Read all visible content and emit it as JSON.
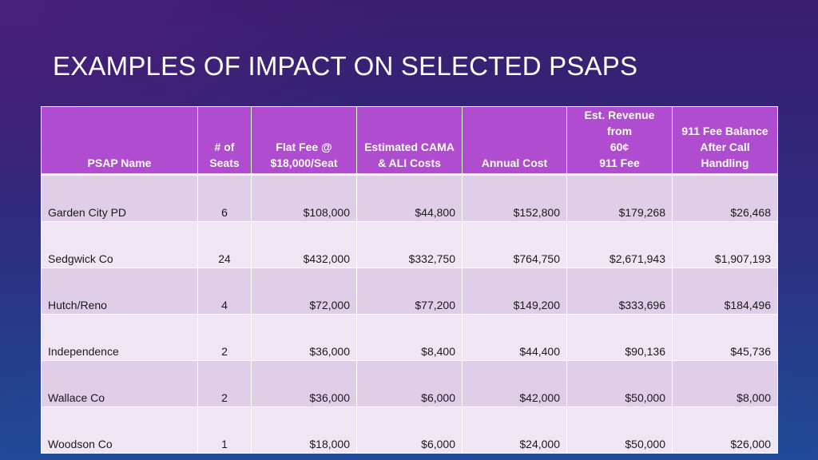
{
  "slide": {
    "title": "EXAMPLES OF IMPACT ON SELECTED PSAPS"
  },
  "table": {
    "headers": [
      {
        "lines": [
          "PSAP Name"
        ]
      },
      {
        "lines": [
          "# of",
          "Seats"
        ]
      },
      {
        "lines": [
          "Flat Fee @",
          "$18,000/Seat"
        ]
      },
      {
        "lines": [
          "Estimated CAMA",
          "& ALI Costs"
        ]
      },
      {
        "lines": [
          "Annual Cost"
        ]
      },
      {
        "lines": [
          "Est. Revenue from",
          "60¢",
          "911 Fee"
        ]
      },
      {
        "lines": [
          "911 Fee Balance",
          "After Call",
          "Handling"
        ]
      }
    ],
    "rows": [
      [
        "Garden City PD",
        "6",
        "$108,000",
        "$44,800",
        "$152,800",
        "$179,268",
        "$26,468"
      ],
      [
        "Sedgwick Co",
        "24",
        "$432,000",
        "$332,750",
        "$764,750",
        "$2,671,943",
        "$1,907,193"
      ],
      [
        "Hutch/Reno",
        "4",
        "$72,000",
        "$77,200",
        "$149,200",
        "$333,696",
        "$184,496"
      ],
      [
        "Independence",
        "2",
        "$36,000",
        "$8,400",
        "$44,400",
        "$90,136",
        "$45,736"
      ],
      [
        "Wallace Co",
        "2",
        "$36,000",
        "$6,000",
        "$42,000",
        "$50,000",
        "$8,000"
      ],
      [
        "Woodson Co",
        "1",
        "$18,000",
        "$6,000",
        "$24,000",
        "$50,000",
        "$26,000"
      ]
    ]
  }
}
